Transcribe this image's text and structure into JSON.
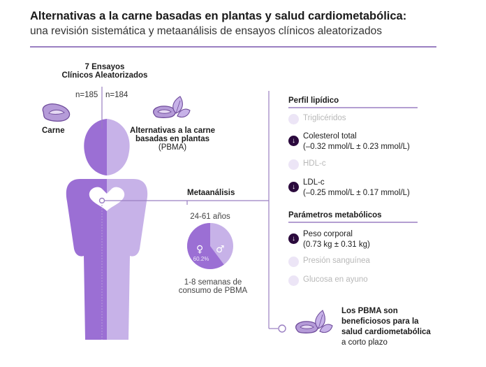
{
  "title": "Alternativas a la carne basadas en plantas y salud cardiometabólica:",
  "subtitle": "una revisión sistemática y metaanálisis de ensayos clínicos aleatorizados",
  "trials": {
    "line1": "7 Ensayos",
    "line2": "Clínicos Aleatorizados"
  },
  "meat": {
    "n": "n=185",
    "label": "Carne"
  },
  "pbma": {
    "n": "n=184",
    "label1": "Alternativas a la carne",
    "label2": "basadas en plantas",
    "label3": "(PBMA)"
  },
  "meta_label": "Metaanálisis",
  "age": "24-61 años",
  "gender_pie": {
    "female_percent": "60.2%",
    "female_fraction": 0.602,
    "female_icon": "female-symbol-icon",
    "male_icon": "male-symbol-icon"
  },
  "duration": {
    "line1": "1-8 semanas de",
    "line2": "consumo de PBMA"
  },
  "lipid": {
    "heading": "Perfil lipídico",
    "items": [
      {
        "label": "Triglicéridos",
        "significant": false
      },
      {
        "label": "Colesterol total",
        "detail": "(–0.32 mmol/L ± 0.23 mmol/L)",
        "significant": true
      },
      {
        "label": "HDL-c",
        "significant": false
      },
      {
        "label": "LDL-c",
        "detail": "(–0.25 mmol/L ± 0.17 mmol/L)",
        "significant": true
      }
    ]
  },
  "metabolic": {
    "heading": "Parámetros metabólicos",
    "items": [
      {
        "label": "Peso corporal",
        "detail": "(0.73 kg ± 0.31 kg)",
        "significant": true
      },
      {
        "label": "Presión sanguínea",
        "significant": false
      },
      {
        "label": "Glucosa en ayuno",
        "significant": false
      }
    ]
  },
  "conclusion": {
    "line1": "Los PBMA son",
    "line2": "beneficiosos para la",
    "line3": "salud cardiometabólica",
    "line4": "a corto plazo"
  },
  "colors": {
    "dark_purple": "#9b6fd4",
    "light_purple": "#c7b2e8",
    "line": "#9a7fc2",
    "marker_dark": "#2b0a3d",
    "marker_light": "#ece5f6"
  }
}
